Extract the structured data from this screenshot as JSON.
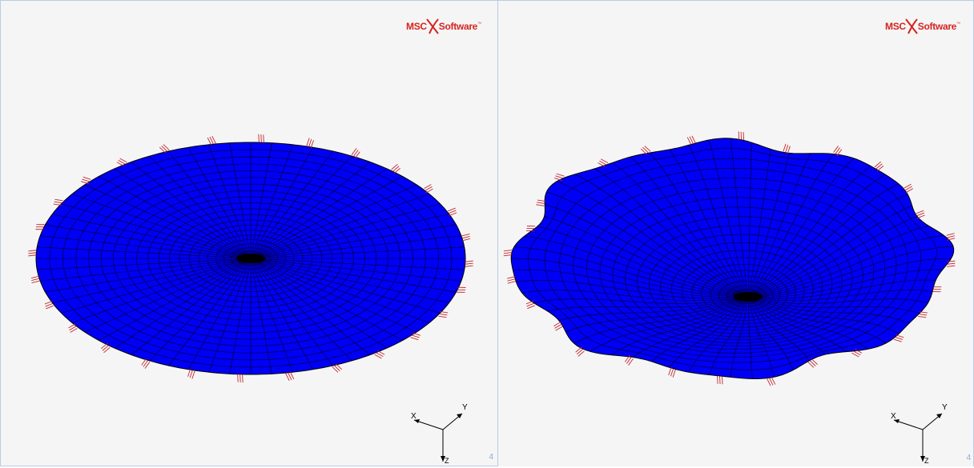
{
  "viewports": [
    {
      "id": "left",
      "logo": {
        "brand_left": "MSC",
        "brand_right": "Software",
        "trademark": "™"
      },
      "triad": {
        "x_label": "X",
        "y_label": "Y",
        "z_label": "Z"
      },
      "viewport_number": "4",
      "model": {
        "state": "undeformed",
        "fill_color": "#0000f5",
        "mesh_color": "#000000",
        "constraint_color": "#c0272d"
      }
    },
    {
      "id": "right",
      "logo": {
        "brand_left": "MSC",
        "brand_right": "Software",
        "trademark": "™"
      },
      "triad": {
        "x_label": "X",
        "y_label": "Y",
        "z_label": "Z"
      },
      "viewport_number": "4",
      "model": {
        "state": "deformed",
        "fill_color": "#0000f5",
        "mesh_color": "#000000",
        "constraint_color": "#c0272d"
      }
    }
  ]
}
